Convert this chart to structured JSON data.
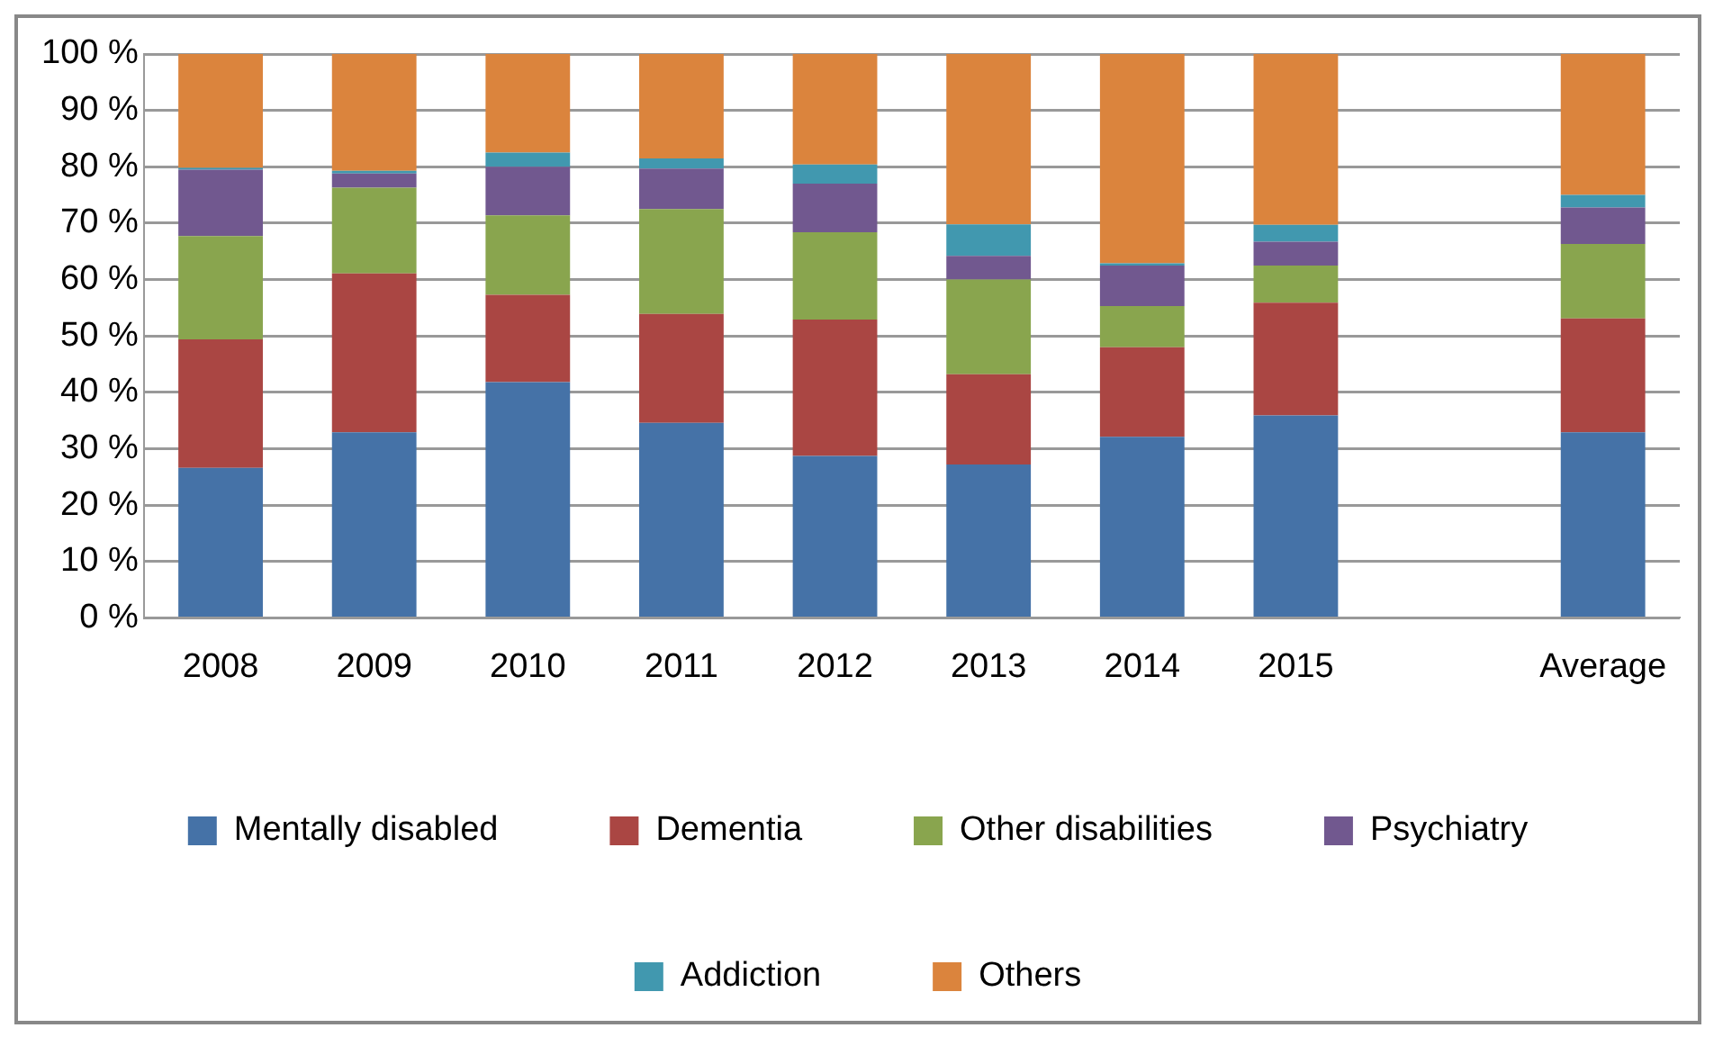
{
  "chart_data": {
    "type": "bar",
    "stacked": true,
    "categories": [
      "2008",
      "2009",
      "2010",
      "2011",
      "2012",
      "2013",
      "2014",
      "2015",
      null,
      "Average"
    ],
    "series": [
      {
        "name": "Mentally disabled",
        "color": "#4572a7",
        "values": [
          26.6,
          32.9,
          41.8,
          34.6,
          28.7,
          27.2,
          32.1,
          35.9,
          null,
          32.9
        ]
      },
      {
        "name": "Dementia",
        "color": "#aa4643",
        "values": [
          22.8,
          28.2,
          15.5,
          19.3,
          24.2,
          16.0,
          15.9,
          20.0,
          null,
          20.2
        ]
      },
      {
        "name": "Other disabilities",
        "color": "#89a54e",
        "values": [
          18.3,
          15.2,
          14.1,
          18.6,
          15.5,
          16.8,
          7.3,
          6.6,
          null,
          13.2
        ]
      },
      {
        "name": "Psychiatry",
        "color": "#71588f",
        "values": [
          11.8,
          2.5,
          8.6,
          7.2,
          8.6,
          4.2,
          7.2,
          4.2,
          null,
          6.5
        ]
      },
      {
        "name": "Addiction",
        "color": "#4198af",
        "values": [
          0.3,
          0.5,
          2.5,
          1.8,
          3.4,
          5.6,
          0.4,
          3.0,
          null,
          2.2
        ]
      },
      {
        "name": "Others",
        "color": "#db843d",
        "values": [
          20.2,
          20.7,
          17.5,
          18.5,
          19.6,
          30.2,
          37.1,
          30.3,
          null,
          25.0
        ]
      }
    ],
    "ylim": [
      0,
      100
    ],
    "yticks": [
      {
        "value": 0,
        "label": "0 %"
      },
      {
        "value": 10,
        "label": "10 %"
      },
      {
        "value": 20,
        "label": "20 %"
      },
      {
        "value": 30,
        "label": "30 %"
      },
      {
        "value": 40,
        "label": "40 %"
      },
      {
        "value": 50,
        "label": "50 %"
      },
      {
        "value": 60,
        "label": "60 %"
      },
      {
        "value": 70,
        "label": "70 %"
      },
      {
        "value": 80,
        "label": "80 %"
      },
      {
        "value": 90,
        "label": "90 %"
      },
      {
        "value": 100,
        "label": "100 %"
      }
    ],
    "grid": "y",
    "legend": "bottom"
  }
}
